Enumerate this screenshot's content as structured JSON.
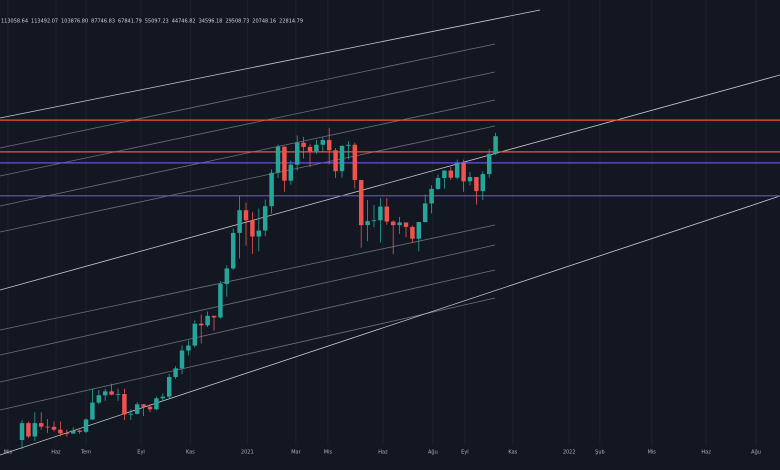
{
  "chart_data": {
    "type": "candlestick",
    "header_values": [
      "113058.64",
      "113492.07",
      "103876.80",
      "87746.83",
      "67841.79",
      "55097.23",
      "44746.82",
      "34596.18",
      "29508.73",
      "20748.16",
      "22814.79"
    ],
    "log_y": true,
    "ylim": [
      7900,
      147800
    ],
    "xlim": [
      -3.44,
      118.44
    ],
    "xticks": [
      {
        "value": -2.2,
        "label": "Mis"
      },
      {
        "value": 5.3,
        "label": "Haz"
      },
      {
        "value": 10,
        "label": "Tem"
      },
      {
        "value": 18.6,
        "label": "Eyl"
      },
      {
        "value": 26.3,
        "label": "Kas"
      },
      {
        "value": 35.2,
        "label": "2021"
      },
      {
        "value": 42.8,
        "label": "Mar"
      },
      {
        "value": 47.8,
        "label": "Mis"
      },
      {
        "value": 56.4,
        "label": "Haz"
      },
      {
        "value": 64.2,
        "label": "Ağu"
      },
      {
        "value": 69.2,
        "label": "Eyl"
      },
      {
        "value": 76.7,
        "label": "Kas"
      },
      {
        "value": 85.5,
        "label": "2022"
      },
      {
        "value": 90.3,
        "label": "Şub"
      },
      {
        "value": 98.4,
        "label": "Mis"
      },
      {
        "value": 106.9,
        "label": "Haz"
      },
      {
        "value": 114.7,
        "label": "Ağu"
      }
    ],
    "grid": true,
    "up_color": "#26a69a",
    "down_color": "#ef5350",
    "levels": [
      {
        "value": 68200,
        "color": "#f0533d"
      },
      {
        "value": 55600,
        "color": "#f0533d"
      },
      {
        "value": 51800,
        "color": "#6a4fe6"
      },
      {
        "value": 41900,
        "color": "#6a4fe6"
      }
    ],
    "open": [
      8700,
      9700,
      8900,
      9700,
      9480,
      9470,
      9300,
      9080,
      9070,
      9250,
      9170,
      9930,
      11070,
      11600,
      11900,
      11650,
      11700,
      10250,
      10300,
      10950,
      10780,
      10600,
      11380,
      11500,
      13050,
      13800,
      15480,
      15980,
      18400,
      18200,
      19350,
      19150,
      23750,
      26250,
      33000,
      38200,
      35800,
      32250,
      33500,
      39200,
      48600,
      57500,
      46200,
      51200,
      59000,
      57400,
      55800,
      58200,
      60000,
      56200,
      49100,
      57800,
      58200,
      46400,
      34700,
      35600,
      35800,
      39100,
      35500,
      34700,
      35300,
      34300,
      31800,
      35400,
      39900,
      43800,
      47000,
      49300,
      47100,
      51800,
      46000,
      47300,
      43200,
      48200,
      54900
    ],
    "high": [
      9900,
      9800,
      10400,
      10400,
      9960,
      9800,
      9800,
      9300,
      9450,
      9300,
      10000,
      12100,
      12000,
      12100,
      12500,
      12100,
      12100,
      10600,
      11100,
      10950,
      10950,
      11500,
      11750,
      13300,
      14000,
      16000,
      16500,
      18800,
      19500,
      19900,
      19400,
      24200,
      26800,
      34000,
      41900,
      40100,
      37800,
      38600,
      40900,
      49700,
      58300,
      57500,
      52600,
      61800,
      61200,
      58400,
      60100,
      61100,
      64900,
      57000,
      58000,
      59600,
      59000,
      46400,
      40800,
      39500,
      41300,
      41300,
      35800,
      36600,
      35300,
      34600,
      35400,
      42300,
      44800,
      48100,
      49400,
      50500,
      52900,
      52900,
      48800,
      47300,
      49000,
      56600,
      62900
    ],
    "low": [
      8200,
      8800,
      8650,
      9300,
      9100,
      9200,
      8900,
      8900,
      9050,
      9050,
      9100,
      9900,
      10950,
      11200,
      11600,
      11200,
      9900,
      9900,
      10250,
      10150,
      10400,
      10550,
      11150,
      11400,
      12900,
      13300,
      15000,
      15800,
      16200,
      18000,
      17600,
      19000,
      21900,
      26000,
      28000,
      30400,
      28800,
      29300,
      32300,
      37400,
      47000,
      43000,
      45000,
      49300,
      53300,
      50400,
      54900,
      55500,
      51300,
      47000,
      47100,
      53000,
      43900,
      30000,
      31300,
      34200,
      31000,
      34800,
      28800,
      32800,
      32100,
      31000,
      29300,
      35300,
      37400,
      43500,
      43900,
      46400,
      46600,
      43000,
      44800,
      39600,
      40800,
      47100,
      54500
    ],
    "close": [
      9700,
      8900,
      9700,
      9480,
      9470,
      9300,
      9080,
      9070,
      9250,
      9170,
      9930,
      11070,
      11600,
      11900,
      11650,
      11700,
      10250,
      10300,
      10950,
      10780,
      10600,
      11380,
      11500,
      13050,
      13800,
      15480,
      15980,
      18400,
      18200,
      19350,
      19150,
      23750,
      26250,
      33000,
      38200,
      35800,
      32250,
      33500,
      39200,
      48600,
      57500,
      46200,
      51200,
      59000,
      57400,
      55800,
      58200,
      60000,
      56200,
      49100,
      57800,
      58200,
      46400,
      34700,
      35600,
      35800,
      39100,
      35500,
      34700,
      35300,
      34300,
      31800,
      35400,
      39900,
      43800,
      47000,
      49300,
      47100,
      51800,
      46000,
      47300,
      43200,
      48200,
      54900,
      61500
    ]
  }
}
